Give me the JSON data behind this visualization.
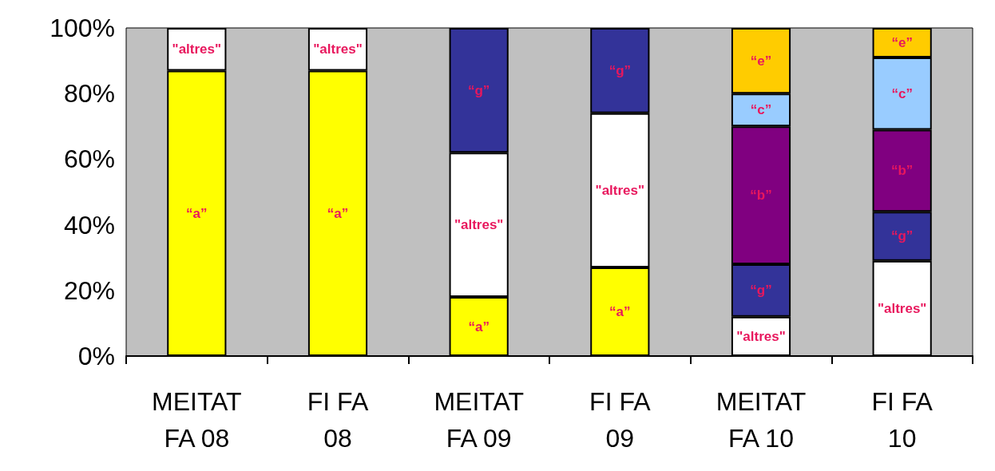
{
  "chart_data": {
    "type": "bar",
    "stacked": true,
    "categories": [
      "MEITAT\nFA 08",
      "FI FA\n08",
      "MEITAT\nFA 09",
      "FI FA\n09",
      "MEITAT\nFA 10",
      "FI FA\n10"
    ],
    "series": [
      {
        "name": "“a”",
        "color": "#ffff00",
        "values": [
          87,
          87,
          18,
          27,
          null,
          null
        ]
      },
      {
        "name": "\"altres\"",
        "color": "#ffffff",
        "values": [
          13,
          13,
          44,
          47,
          12,
          29
        ]
      },
      {
        "name": "“g”",
        "color": "#333399",
        "values": [
          null,
          null,
          38,
          26,
          16,
          15
        ]
      },
      {
        "name": "“b”",
        "color": "#800080",
        "values": [
          null,
          null,
          null,
          null,
          42,
          25
        ]
      },
      {
        "name": "“c”",
        "color": "#99ccff",
        "values": [
          null,
          null,
          null,
          null,
          10,
          22
        ]
      },
      {
        "name": "“e”",
        "color": "#ffcc00",
        "values": [
          null,
          null,
          null,
          null,
          20,
          9
        ]
      }
    ],
    "ylim": [
      0,
      100
    ],
    "yticks": [
      {
        "value": 0,
        "label": "0%"
      },
      {
        "value": 20,
        "label": "20%"
      },
      {
        "value": 40,
        "label": "40%"
      },
      {
        "value": 60,
        "label": "60%"
      },
      {
        "value": 80,
        "label": "80%"
      },
      {
        "value": 100,
        "label": "100%"
      }
    ],
    "grid": false,
    "legend": false
  }
}
